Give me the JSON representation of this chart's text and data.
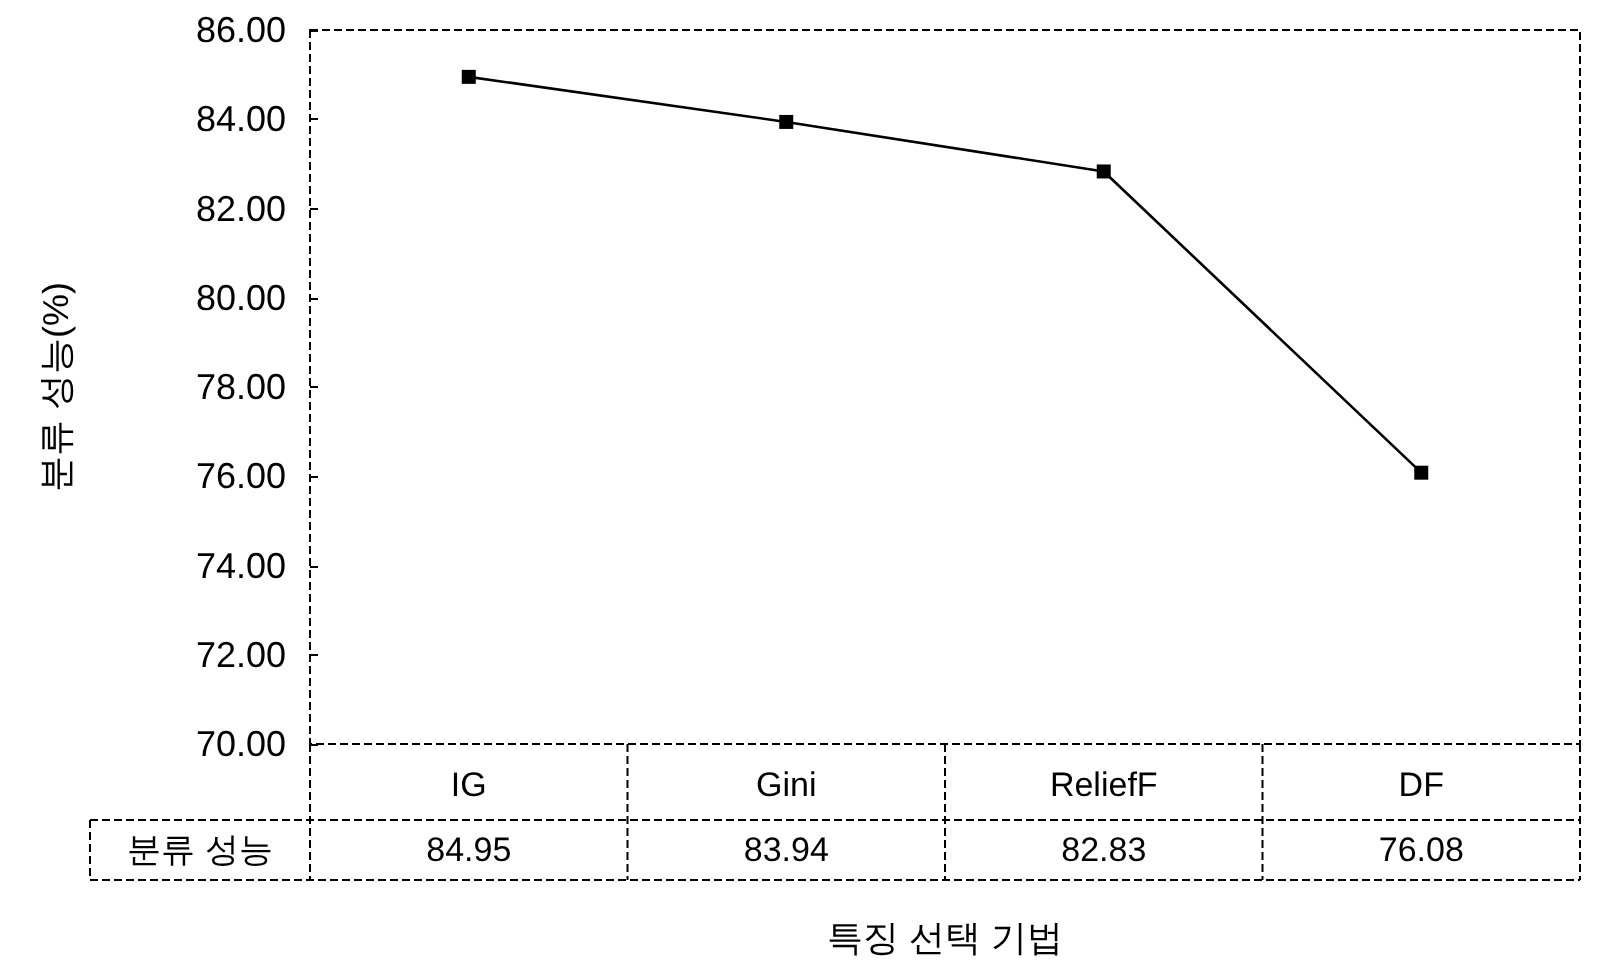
{
  "chart_data": {
    "type": "line",
    "xlabel": "특징 선택 기법",
    "ylabel": "분류 성능(%)",
    "categories": [
      "IG",
      "Gini",
      "ReliefF",
      "DF"
    ],
    "series": [
      {
        "name": "분류 성능",
        "color": "#000000",
        "values": [
          84.95,
          83.94,
          82.83,
          76.08
        ]
      }
    ],
    "ylim": [
      70,
      86
    ],
    "yticks": [
      {
        "value": 70,
        "label": "70.00"
      },
      {
        "value": 72,
        "label": "72.00"
      },
      {
        "value": 74,
        "label": "74.00"
      },
      {
        "value": 76,
        "label": "76.00"
      },
      {
        "value": 78,
        "label": "78.00"
      },
      {
        "value": 80,
        "label": "80.00"
      },
      {
        "value": 82,
        "label": "82.00"
      },
      {
        "value": 84,
        "label": "84.00"
      },
      {
        "value": 86,
        "label": "86.00"
      }
    ],
    "grid": false,
    "legend": "bottom left",
    "marker": "square",
    "line_style": "solid",
    "data_labels": true
  }
}
